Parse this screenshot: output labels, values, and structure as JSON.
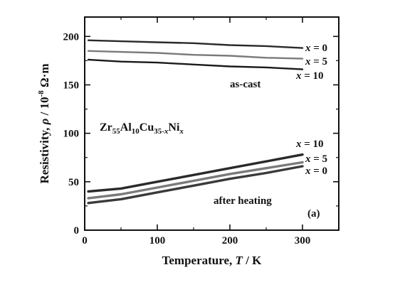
{
  "chart_data": {
    "type": "line",
    "xlabel": "Temperature, T / K",
    "ylabel": "Resistivity, ρ / 10⁻⁸ Ω·m",
    "xlim": [
      0,
      350
    ],
    "ylim": [
      0,
      220
    ],
    "x_ticks": [
      0,
      100,
      200,
      300
    ],
    "y_ticks": [
      0,
      50,
      100,
      150,
      200
    ],
    "grid": false,
    "legend": "none",
    "series": [
      {
        "name": "x = 0",
        "group": "as-cast",
        "color": "#2a2a2a",
        "x": [
          5,
          50,
          100,
          150,
          200,
          250,
          300
        ],
        "y": [
          196,
          195,
          194,
          193,
          191,
          190,
          188
        ]
      },
      {
        "name": "x = 5",
        "group": "as-cast",
        "color": "#7a7a7a",
        "x": [
          5,
          50,
          100,
          150,
          200,
          250,
          300
        ],
        "y": [
          185,
          184,
          183,
          181,
          180,
          178,
          177
        ]
      },
      {
        "name": "x = 10",
        "group": "as-cast",
        "color": "#1a1a1a",
        "x": [
          5,
          50,
          100,
          150,
          200,
          250,
          300
        ],
        "y": [
          176,
          174,
          173,
          171,
          169,
          168,
          166
        ]
      },
      {
        "name": "x = 10",
        "group": "after heating",
        "color": "#2a2a2a",
        "x": [
          5,
          50,
          100,
          150,
          200,
          250,
          300
        ],
        "y": [
          40,
          43,
          50,
          57,
          64,
          71,
          78
        ]
      },
      {
        "name": "x = 5",
        "group": "after heating",
        "color": "#7a7a7a",
        "x": [
          5,
          50,
          100,
          150,
          200,
          250,
          300
        ],
        "y": [
          33,
          37,
          44,
          51,
          58,
          64,
          70
        ]
      },
      {
        "name": "x = 0",
        "group": "after heating",
        "color": "#3a3a3a",
        "x": [
          5,
          50,
          100,
          150,
          200,
          250,
          300
        ],
        "y": [
          28,
          32,
          39,
          46,
          53,
          59,
          66
        ]
      }
    ],
    "annotations": {
      "compound": "Zr55Al10Cu35-xNix",
      "as_cast": "as-cast",
      "after_heating": "after heating",
      "panel": "(a)"
    }
  }
}
